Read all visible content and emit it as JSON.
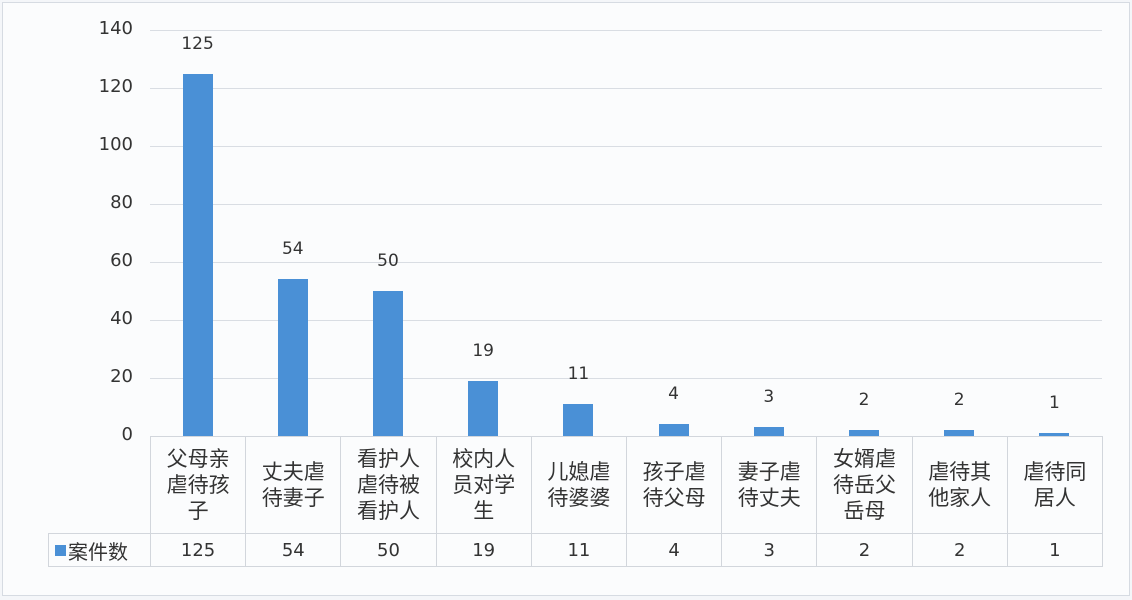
{
  "chart_data": {
    "type": "bar",
    "title": "",
    "xlabel": "",
    "ylabel": "",
    "ylim": [
      0,
      140
    ],
    "yticks": [
      0,
      20,
      40,
      60,
      80,
      100,
      120,
      140
    ],
    "grid": true,
    "legend_position": "data-table",
    "categories": [
      "父母亲虐待孩子",
      "丈夫虐待妻子",
      "看护人虐待被看护人",
      "校内人员对学生",
      "儿媳虐待婆婆",
      "孩子虐待父母",
      "妻子虐待丈夫",
      "女婿虐待岳父岳母",
      "虐待其他家人",
      "虐待同居人"
    ],
    "category_lines": [
      [
        "父母亲",
        "虐待孩",
        "子"
      ],
      [
        "丈夫虐",
        "待妻子"
      ],
      [
        "看护人",
        "虐待被",
        "看护人"
      ],
      [
        "校内人",
        "员对学",
        "生"
      ],
      [
        "儿媳虐",
        "待婆婆"
      ],
      [
        "孩子虐",
        "待父母"
      ],
      [
        "妻子虐",
        "待丈夫"
      ],
      [
        "女婿虐",
        "待岳父",
        "岳母"
      ],
      [
        "虐待其",
        "他家人"
      ],
      [
        "虐待同",
        "居人"
      ]
    ],
    "series": [
      {
        "name": "案件数",
        "color": "#4a90d6",
        "values": [
          125,
          54,
          50,
          19,
          11,
          4,
          3,
          2,
          2,
          1
        ]
      }
    ]
  }
}
